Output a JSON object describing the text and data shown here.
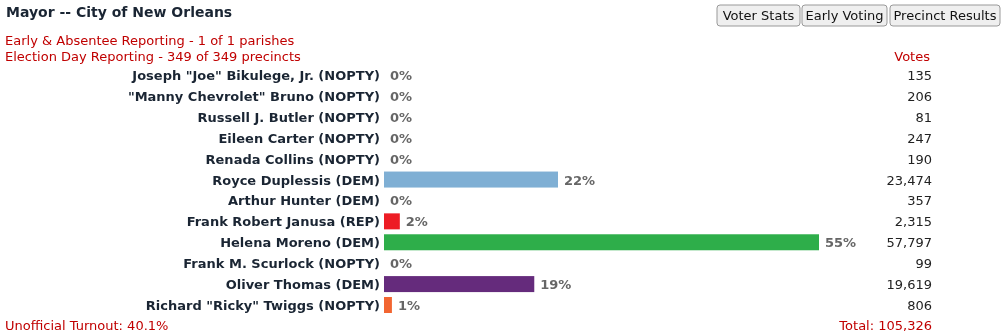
{
  "chart_data": {
    "type": "bar",
    "orientation": "horizontal",
    "title": "Mayor -- City of New Orleans",
    "categories": [
      "Joseph \"Joe\" Bikulege, Jr. (NOPTY)",
      "\"Manny Chevrolet\" Bruno (NOPTY)",
      "Russell J. Butler (NOPTY)",
      "Eileen Carter (NOPTY)",
      "Renada Collins (NOPTY)",
      "Royce Duplessis (DEM)",
      "Arthur Hunter (DEM)",
      "Frank Robert Janusa (REP)",
      "Helena Moreno (DEM)",
      "Frank M. Scurlock (NOPTY)",
      "Oliver Thomas (DEM)",
      "Richard \"Ricky\" Twiggs (NOPTY)"
    ],
    "values": [
      0,
      0,
      0,
      0,
      0,
      22,
      0,
      2,
      55,
      0,
      19,
      1
    ],
    "colors": [
      "#5ab4e5",
      "#5ab4e5",
      "#5ab4e5",
      "#5ab4e5",
      "#5ab4e5",
      "#7fafd4",
      "#1a9a9a",
      "#ed1c24",
      "#2eae4a",
      "#5ab4e5",
      "#652b7c",
      "#f26531"
    ],
    "value_labels": [
      "0%",
      "0%",
      "0%",
      "0%",
      "0%",
      "22%",
      "0%",
      "2%",
      "55%",
      "0%",
      "19%",
      "1%"
    ],
    "annotations": [
      "Voter Stats",
      "Early Voting",
      "Precinct Results",
      "Early & Absentee Reporting - 1 of 1 parishes",
      "Election Day Reporting - 349 of 349 precincts",
      "Votes",
      "Unofficial Turnout: 40.1%",
      "Total: 105,326",
      "135",
      "206",
      "81",
      "247",
      "190",
      "23,474",
      "357",
      "2,315",
      "57,797",
      "99",
      "19,619",
      "806"
    ]
  }
}
